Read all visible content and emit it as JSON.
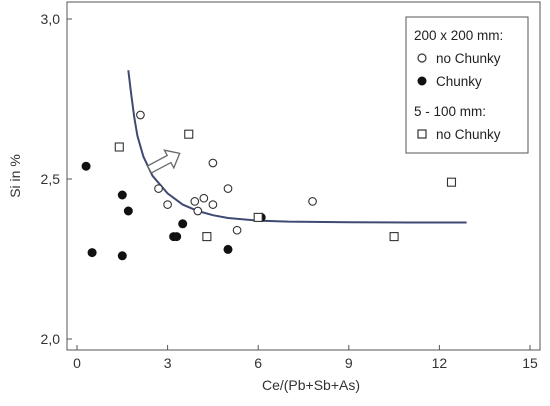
{
  "chart_data": {
    "type": "scatter",
    "title": "",
    "xlabel": "Ce/(Pb+Sb+As)",
    "ylabel": "Si in %",
    "xlim": [
      -1,
      15.5
    ],
    "ylim": [
      1.95,
      3.0
    ],
    "x_ticks": [
      0,
      3,
      6,
      9,
      12,
      15
    ],
    "x_tick_labels": [
      "0",
      "3",
      "6",
      "9",
      "12",
      "15"
    ],
    "y_ticks": [
      2.0,
      2.5,
      3.0
    ],
    "y_tick_labels": [
      "2,0",
      "2,5",
      "3,0"
    ],
    "grid": false,
    "legend_position": "top-right",
    "legend": {
      "group1_title": "200 x 200 mm:",
      "group2_title": "5 - 100 mm:"
    },
    "series": [
      {
        "name": "no Chunky",
        "group": "200 x 200 mm:",
        "marker": "open-circle",
        "points": [
          {
            "x": 2.1,
            "y": 2.7
          },
          {
            "x": 2.7,
            "y": 2.47
          },
          {
            "x": 3.0,
            "y": 2.42
          },
          {
            "x": 3.9,
            "y": 2.43
          },
          {
            "x": 4.0,
            "y": 2.4
          },
          {
            "x": 4.2,
            "y": 2.44
          },
          {
            "x": 4.5,
            "y": 2.55
          },
          {
            "x": 4.5,
            "y": 2.42
          },
          {
            "x": 5.0,
            "y": 2.47
          },
          {
            "x": 5.3,
            "y": 2.34
          },
          {
            "x": 7.8,
            "y": 2.43
          }
        ]
      },
      {
        "name": "Chunky",
        "group": "200 x 200 mm:",
        "marker": "filled-circle",
        "points": [
          {
            "x": 0.3,
            "y": 2.54
          },
          {
            "x": 0.5,
            "y": 2.27
          },
          {
            "x": 1.5,
            "y": 2.45
          },
          {
            "x": 1.5,
            "y": 2.26
          },
          {
            "x": 1.7,
            "y": 2.4
          },
          {
            "x": 3.2,
            "y": 2.32
          },
          {
            "x": 3.3,
            "y": 2.32
          },
          {
            "x": 3.5,
            "y": 2.36
          },
          {
            "x": 5.0,
            "y": 2.28
          },
          {
            "x": 6.1,
            "y": 2.38
          }
        ]
      },
      {
        "name": "no Chunky",
        "group": "5 - 100 mm:",
        "marker": "open-square",
        "points": [
          {
            "x": 1.4,
            "y": 2.6
          },
          {
            "x": 3.7,
            "y": 2.64
          },
          {
            "x": 4.3,
            "y": 2.32
          },
          {
            "x": 6.0,
            "y": 2.38
          },
          {
            "x": 10.5,
            "y": 2.32
          },
          {
            "x": 12.4,
            "y": 2.49
          }
        ]
      }
    ],
    "trend_curve": {
      "style": "solid",
      "color": "#3f4a72",
      "points": [
        [
          1.7,
          2.84
        ],
        [
          1.8,
          2.76
        ],
        [
          1.9,
          2.69
        ],
        [
          2.0,
          2.635
        ],
        [
          2.2,
          2.57
        ],
        [
          2.5,
          2.51
        ],
        [
          3.0,
          2.455
        ],
        [
          3.5,
          2.42
        ],
        [
          4.0,
          2.4
        ],
        [
          4.5,
          2.387
        ],
        [
          5.0,
          2.378
        ],
        [
          6.0,
          2.37
        ],
        [
          7.0,
          2.367
        ],
        [
          9.0,
          2.365
        ],
        [
          11.0,
          2.364
        ],
        [
          12.9,
          2.364
        ]
      ]
    },
    "annotation": {
      "type": "arrow",
      "from": [
        2.4,
        2.53
      ],
      "to": [
        3.4,
        2.58
      ]
    },
    "colors": {
      "axis": "#555555",
      "marker_stroke": "#333333",
      "marker_fill": "#111111"
    }
  }
}
